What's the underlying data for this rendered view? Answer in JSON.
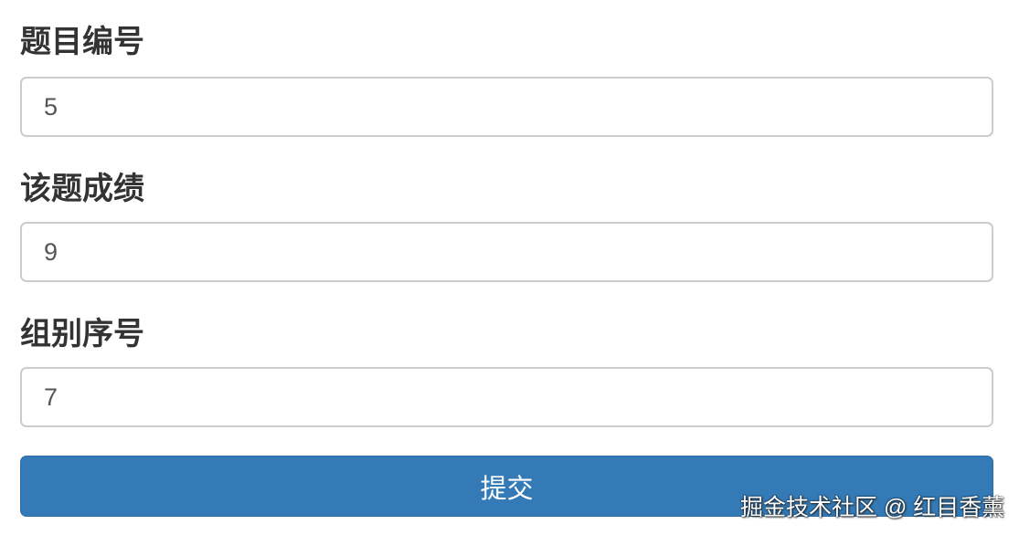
{
  "form": {
    "fields": [
      {
        "label": "题目编号",
        "value": "5"
      },
      {
        "label": "该题成绩",
        "value": "9"
      },
      {
        "label": "组别序号",
        "value": "7"
      }
    ],
    "submit_label": "提交"
  },
  "watermark": "掘金技术社区 @ 红目香薰",
  "colors": {
    "button": "#337ab7",
    "label": "#333333"
  }
}
